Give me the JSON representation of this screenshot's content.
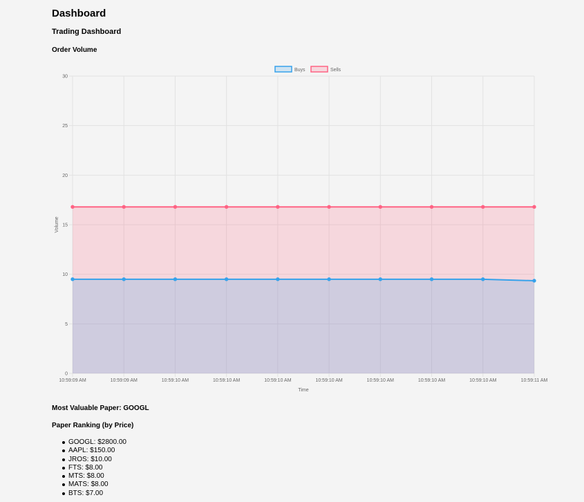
{
  "header": {
    "title": "Dashboard",
    "subtitle": "Trading Dashboard"
  },
  "chart_section": {
    "title": "Order Volume"
  },
  "chart_data": {
    "type": "area",
    "x": [
      "10:59:09 AM",
      "10:59:09 AM",
      "10:59:10 AM",
      "10:59:10 AM",
      "10:59:10 AM",
      "10:59:10 AM",
      "10:59:10 AM",
      "10:59:10 AM",
      "10:59:10 AM",
      "10:59:11 AM"
    ],
    "series": [
      {
        "name": "Buys",
        "values": [
          9.5,
          9.5,
          9.5,
          9.5,
          9.5,
          9.5,
          9.5,
          9.5,
          9.5,
          9.35
        ],
        "color": "#36a2eb",
        "fill": "rgba(54,162,235,0.2)"
      },
      {
        "name": "Sells",
        "values": [
          16.8,
          16.8,
          16.8,
          16.8,
          16.8,
          16.8,
          16.8,
          16.8,
          16.8,
          16.8
        ],
        "color": "#ff6384",
        "fill": "rgba(255,99,132,0.2)"
      }
    ],
    "xlabel": "Time",
    "ylabel": "Volume",
    "ylim": [
      0,
      30
    ],
    "yticks": [
      0,
      5,
      10,
      15,
      20,
      25,
      30
    ],
    "grid": true,
    "legend_position": "top-center"
  },
  "summary": {
    "most_valuable": "Most Valuable Paper: GOOGL",
    "ranking_title": "Paper Ranking (by Price)",
    "ranking": [
      "GOOGL: $2800.00",
      "AAPL: $150.00",
      "JROS: $10.00",
      "FTS: $8.00",
      "MTS: $8.00",
      "MATS: $8.00",
      "BTS: $7.00"
    ]
  }
}
